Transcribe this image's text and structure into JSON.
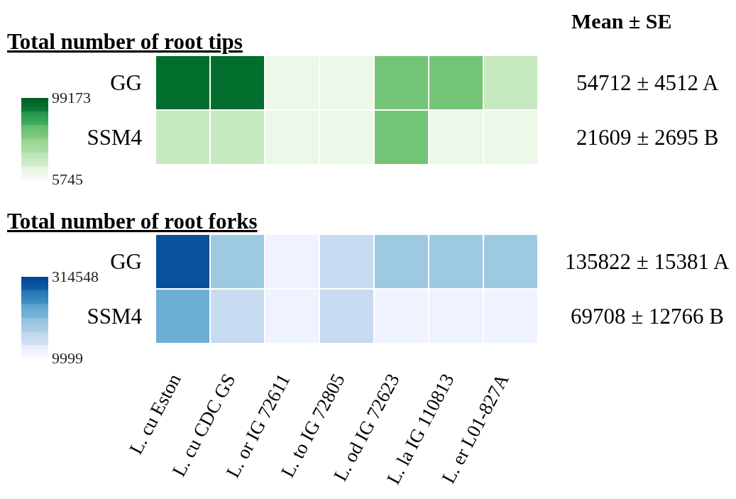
{
  "chart_data": [
    {
      "type": "heatmap",
      "title": "Total number of root tips",
      "categories": [
        "L. cu Eston",
        "L. cu CDC GS",
        "L. or IG 72611",
        "L. to IG 72805",
        "L. od IG 72623",
        "L. la IG 110813",
        "L. er L01-827A"
      ],
      "y_categories": [
        "GG",
        "SSM4"
      ],
      "y2_categories": [
        "54712 ± 4512 A",
        "21609 ± 2695 B"
      ],
      "cells": [
        [
          91000,
          91000,
          14000,
          14000,
          60000,
          60000,
          29000
        ],
        [
          29000,
          29000,
          14000,
          14000,
          60000,
          14000,
          14000
        ]
      ],
      "colors": [
        "#edf8e9",
        "#c7e9c0",
        "#a1d99b",
        "#74c476",
        "#31a354",
        "#006d2c"
      ],
      "clim": [
        5745,
        99173
      ],
      "cticks": [
        5745,
        99173
      ],
      "tick_labels": "y",
      "annotations": [
        "Mean ± SE"
      ]
    },
    {
      "type": "heatmap",
      "title": "Total number of root forks",
      "categories": [
        "L. cu Eston",
        "L. cu CDC GS",
        "L. or IG 72611",
        "L. to IG 72805",
        "L. od IG 72623",
        "L. la IG 110813",
        "L. er L01-827A"
      ],
      "y_categories": [
        "GG",
        "SSM4"
      ],
      "y2_categories": [
        "135822 ± 15381 A",
        "69708 ± 12766 B"
      ],
      "cells": [
        [
          289000,
          137000,
          35000,
          86000,
          137000,
          137000,
          137000
        ],
        [
          188000,
          86000,
          35000,
          86000,
          35000,
          35000,
          35000
        ]
      ],
      "colors": [
        "#eff3ff",
        "#c6dbef",
        "#9ecae1",
        "#6baed6",
        "#3182bd",
        "#08519c"
      ],
      "clim": [
        9999,
        314548
      ],
      "cticks": [
        9999,
        314548
      ]
    }
  ]
}
